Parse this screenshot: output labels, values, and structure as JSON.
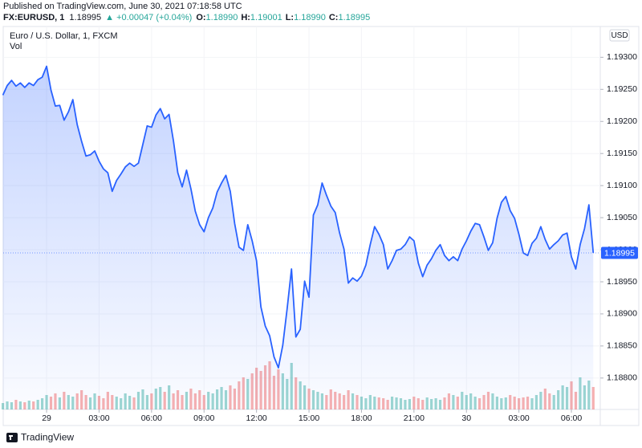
{
  "header": {
    "published": "Published on TradingView.com, June 30, 2021 07:18:58 UTC",
    "symbol": "FX:EURUSD, 1",
    "price": "1.18995",
    "change": "▲ +0.00047 (+0.04%)",
    "ohlc": [
      {
        "label": "O:",
        "value": "1.18990"
      },
      {
        "label": "H:",
        "value": "1.19001"
      },
      {
        "label": "L:",
        "value": "1.18990"
      },
      {
        "label": "C:",
        "value": "1.18995"
      }
    ]
  },
  "footer": {
    "brand": "TradingView"
  },
  "chart_data": {
    "type": "area",
    "currency": "USD",
    "grid": true,
    "x": [
      -2.5,
      -2.25,
      -2,
      -1.75,
      -1.5,
      -1.25,
      -1,
      -0.75,
      -0.5,
      -0.25,
      0,
      0.25,
      0.5,
      0.75,
      1,
      1.25,
      1.5,
      1.75,
      2,
      2.25,
      2.5,
      2.75,
      3,
      3.25,
      3.5,
      3.75,
      4,
      4.25,
      4.5,
      4.75,
      5,
      5.25,
      5.5,
      5.75,
      6,
      6.25,
      6.5,
      6.75,
      7,
      7.25,
      7.5,
      7.75,
      8,
      8.25,
      8.5,
      8.75,
      9,
      9.25,
      9.5,
      9.75,
      10,
      10.25,
      10.5,
      10.75,
      11,
      11.25,
      11.5,
      11.75,
      12,
      12.25,
      12.5,
      12.75,
      13,
      13.25,
      13.5,
      13.75,
      14,
      14.25,
      14.5,
      14.75,
      15,
      15.25,
      15.5,
      15.75,
      16,
      16.25,
      16.5,
      16.75,
      17,
      17.25,
      17.5,
      17.75,
      18,
      18.25,
      18.5,
      18.75,
      19,
      19.25,
      19.5,
      19.75,
      20,
      20.25,
      20.5,
      20.75,
      21,
      21.25,
      21.5,
      21.75,
      22,
      22.25,
      22.5,
      22.75,
      23,
      23.25,
      23.5,
      23.75,
      24,
      24.25,
      24.5,
      24.75,
      25,
      25.25,
      25.5,
      25.75,
      26,
      26.25,
      26.5,
      26.75,
      27,
      27.25,
      27.5,
      27.75,
      28,
      28.25,
      28.5,
      28.75,
      29,
      29.25,
      29.5,
      29.75,
      30,
      30.25,
      30.5,
      30.75,
      31,
      31.25
    ],
    "xlim": [
      -2.48,
      31.65
    ],
    "xticks": [
      {
        "value": 0,
        "label": "29"
      },
      {
        "value": 3,
        "label": "03:00"
      },
      {
        "value": 6,
        "label": "06:00"
      },
      {
        "value": 9,
        "label": "09:00"
      },
      {
        "value": 12,
        "label": "12:00"
      },
      {
        "value": 15,
        "label": "15:00"
      },
      {
        "value": 18,
        "label": "18:00"
      },
      {
        "value": 21,
        "label": "21:00"
      },
      {
        "value": 24,
        "label": "30"
      },
      {
        "value": 27,
        "label": "03:00"
      },
      {
        "value": 30,
        "label": "06:00"
      }
    ],
    "ylim": [
      1.18751,
      1.19348
    ],
    "yticks": [
      {
        "value": 1.188,
        "label": "1.18800"
      },
      {
        "value": 1.1885,
        "label": "1.18850"
      },
      {
        "value": 1.189,
        "label": "1.18900"
      },
      {
        "value": 1.1895,
        "label": "1.18950"
      },
      {
        "value": 1.19,
        "label": "1.19000"
      },
      {
        "value": 1.1905,
        "label": "1.19050"
      },
      {
        "value": 1.191,
        "label": "1.19100"
      },
      {
        "value": 1.1915,
        "label": "1.19150"
      },
      {
        "value": 1.192,
        "label": "1.19200"
      },
      {
        "value": 1.1925,
        "label": "1.19250"
      },
      {
        "value": 1.193,
        "label": "1.19300"
      }
    ],
    "y2lim": [
      0,
      100
    ],
    "series": [
      {
        "name": "Euro / U.S. Dollar, 1, FXCM",
        "color": "#2962ff",
        "values": [
          1.19241,
          1.19256,
          1.19264,
          1.19255,
          1.1926,
          1.19253,
          1.1926,
          1.19256,
          1.19265,
          1.19269,
          1.19286,
          1.19249,
          1.19224,
          1.19225,
          1.19202,
          1.19215,
          1.19234,
          1.19195,
          1.19169,
          1.19146,
          1.19148,
          1.19154,
          1.19138,
          1.19126,
          1.1912,
          1.19091,
          1.19108,
          1.19118,
          1.19129,
          1.19135,
          1.1913,
          1.19135,
          1.19164,
          1.19193,
          1.19191,
          1.1921,
          1.1922,
          1.19204,
          1.19211,
          1.1917,
          1.1912,
          1.19098,
          1.19124,
          1.19095,
          1.1906,
          1.19039,
          1.19028,
          1.1905,
          1.19065,
          1.1909,
          1.19104,
          1.19116,
          1.19091,
          1.19041,
          1.19004,
          1.18999,
          1.19039,
          1.19014,
          1.18983,
          1.18911,
          1.18881,
          1.18866,
          1.18833,
          1.18816,
          1.18851,
          1.18908,
          1.1897,
          1.18864,
          1.18876,
          1.18951,
          1.18926,
          1.19054,
          1.1907,
          1.19104,
          1.19085,
          1.19068,
          1.19058,
          1.19026,
          1.19001,
          1.18948,
          1.18956,
          1.18951,
          1.18959,
          1.18976,
          1.19008,
          1.19036,
          1.19024,
          1.19008,
          1.1897,
          1.18983,
          1.18999,
          1.19001,
          1.19008,
          1.1902,
          1.19014,
          1.18979,
          1.18958,
          1.18976,
          1.18986,
          1.18999,
          1.19008,
          1.18991,
          1.18983,
          1.18989,
          1.18983,
          1.19001,
          1.19014,
          1.19029,
          1.19041,
          1.19039,
          1.1902,
          1.18999,
          1.19011,
          1.19049,
          1.19074,
          1.19083,
          1.19061,
          1.19049,
          1.19024,
          1.18995,
          1.18991,
          1.1901,
          1.19018,
          1.19036,
          1.19016,
          1.19001,
          1.19008,
          1.19014,
          1.19023,
          1.19026,
          1.18989,
          1.1897,
          1.19008,
          1.19033,
          1.1907,
          1.18995
        ]
      },
      {
        "name": "Vol",
        "axis": "y2",
        "up_color": "#26a69a",
        "down_color": "#ef5350",
        "values": [
          8,
          10,
          9,
          12,
          10,
          9,
          11,
          10,
          12,
          14,
          18,
          16,
          20,
          15,
          22,
          18,
          16,
          20,
          24,
          18,
          15,
          20,
          17,
          14,
          22,
          18,
          16,
          14,
          20,
          17,
          15,
          22,
          25,
          18,
          20,
          26,
          28,
          22,
          30,
          20,
          24,
          18,
          22,
          26,
          20,
          24,
          18,
          22,
          20,
          25,
          28,
          24,
          30,
          26,
          35,
          40,
          38,
          45,
          52,
          48,
          55,
          60,
          42,
          50,
          45,
          38,
          58,
          40,
          35,
          30,
          26,
          24,
          22,
          20,
          18,
          25,
          22,
          20,
          18,
          24,
          20,
          18,
          16,
          14,
          18,
          16,
          15,
          14,
          12,
          16,
          15,
          14,
          12,
          13,
          16,
          14,
          12,
          15,
          13,
          14,
          12,
          15,
          20,
          18,
          16,
          22,
          18,
          20,
          16,
          14,
          18,
          22,
          20,
          16,
          14,
          15,
          18,
          16,
          14,
          15,
          16,
          14,
          18,
          22,
          26,
          20,
          18,
          24,
          30,
          28,
          35,
          22,
          40,
          30,
          36,
          28
        ]
      }
    ]
  }
}
